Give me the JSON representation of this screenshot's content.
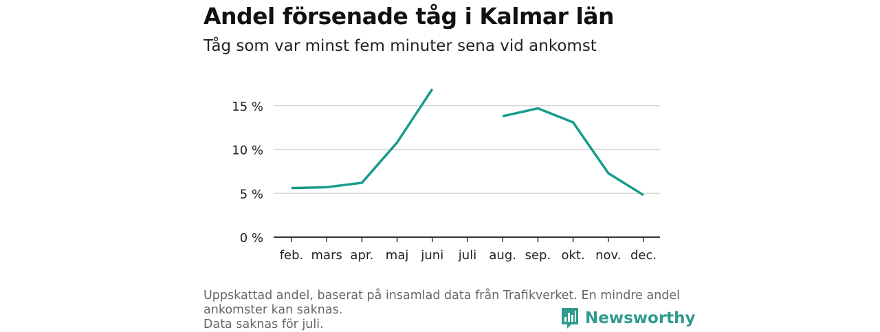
{
  "title": "Andel försenade tåg i Kalmar län",
  "subtitle": "Tåg som var minst fem minuter sena vid ankomst",
  "footer": {
    "line1": "Uppskattad andel, baserat på insamlad data från Trafikverket. En mindre andel",
    "line2": "ankomster kan saknas.",
    "line3": "Data saknas för juli."
  },
  "logo": {
    "text": "Newsworthy",
    "icon": "newsworthy-chat-bars-icon"
  },
  "colors": {
    "line": "#159c8b",
    "grid": "#d9d9d9",
    "axis": "#333333",
    "logo": "#2f9a8c"
  },
  "chart_data": {
    "type": "line",
    "categories": [
      "feb.",
      "mars",
      "apr.",
      "maj",
      "juni",
      "juli",
      "aug.",
      "sep.",
      "okt.",
      "nov.",
      "dec."
    ],
    "series": [
      {
        "values": [
          5.6,
          5.7,
          6.2,
          10.8,
          16.9,
          null,
          13.8,
          14.7,
          13.1,
          7.3,
          4.8
        ]
      }
    ],
    "y_ticks": [
      0,
      5,
      10,
      15
    ],
    "y_tick_labels": [
      "0 %",
      "5 %",
      "10 %",
      "15 %"
    ],
    "ylim": [
      0,
      17
    ],
    "grid": true
  }
}
